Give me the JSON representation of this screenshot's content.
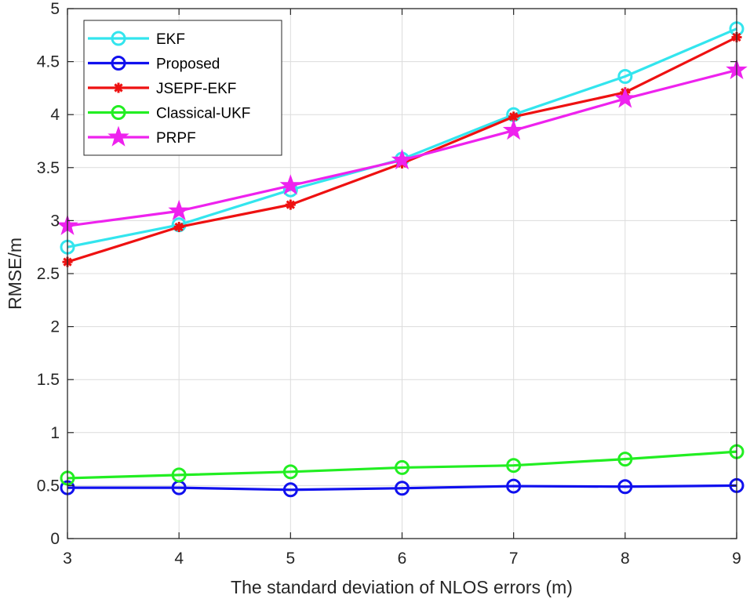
{
  "chart_data": {
    "type": "line",
    "title": "",
    "xlabel": "The standard deviation of NLOS errors (m)",
    "ylabel": "RMSE/m",
    "x": [
      3,
      4,
      5,
      6,
      7,
      8,
      9
    ],
    "xlim": [
      3,
      9
    ],
    "ylim": [
      0,
      5
    ],
    "xticks": [
      "3",
      "4",
      "5",
      "6",
      "7",
      "8",
      "9"
    ],
    "yticks": [
      "0",
      "0.5",
      "1",
      "1.5",
      "2",
      "2.5",
      "3",
      "3.5",
      "4",
      "4.5",
      "5"
    ],
    "grid": true,
    "legend_position": "top-left",
    "series": [
      {
        "name": "EKF",
        "color": "#33e5ee",
        "marker": "circle",
        "values": [
          2.75,
          2.96,
          3.29,
          3.58,
          4.0,
          4.36,
          4.81
        ]
      },
      {
        "name": "Proposed",
        "color": "#1010ee",
        "marker": "circle",
        "values": [
          0.48,
          0.48,
          0.46,
          0.475,
          0.495,
          0.49,
          0.5
        ]
      },
      {
        "name": "JSEPF-EKF",
        "color": "#ee1111",
        "marker": "asterisk",
        "values": [
          2.61,
          2.94,
          3.15,
          3.54,
          3.98,
          4.21,
          4.73
        ]
      },
      {
        "name": "Classical-UKF",
        "color": "#22ee22",
        "marker": "circle",
        "values": [
          0.57,
          0.6,
          0.63,
          0.67,
          0.69,
          0.75,
          0.82
        ]
      },
      {
        "name": "PRPF",
        "color": "#ee22ee",
        "marker": "star",
        "values": [
          2.95,
          3.09,
          3.33,
          3.57,
          3.85,
          4.15,
          4.42
        ]
      }
    ]
  }
}
